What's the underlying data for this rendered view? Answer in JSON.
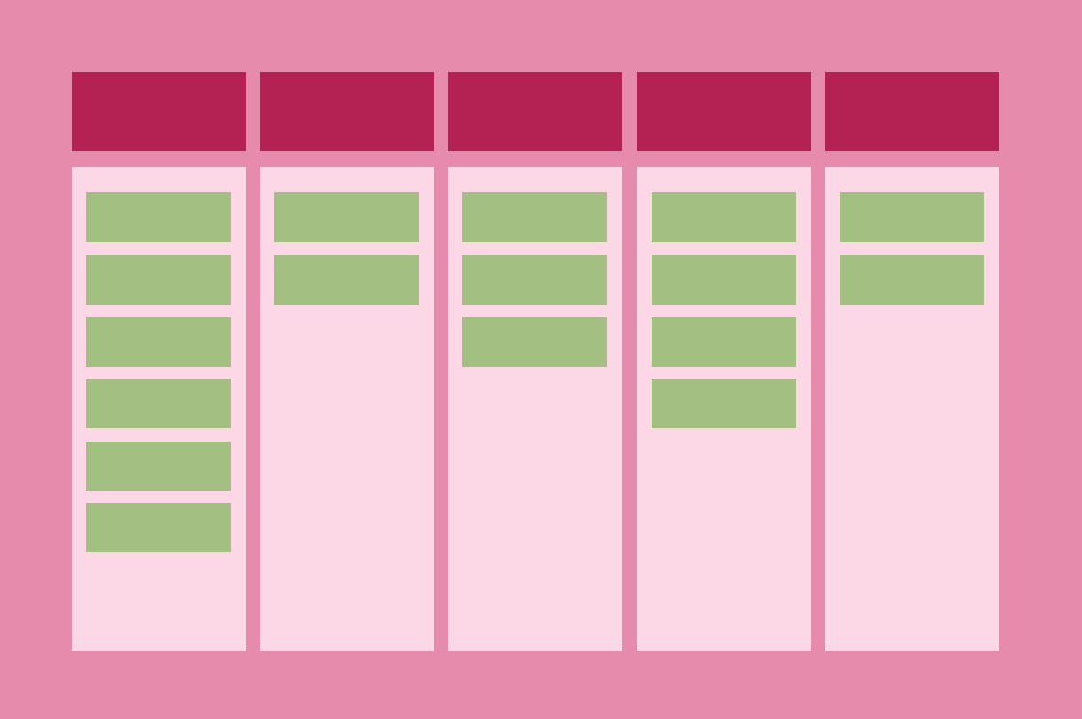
{
  "colors": {
    "background": "#e78bac",
    "column_header": "#b32252",
    "column_body": "#fcd7e6",
    "card": "#a3bf81"
  },
  "columns": [
    {
      "card_count": 6
    },
    {
      "card_count": 2
    },
    {
      "card_count": 3
    },
    {
      "card_count": 4
    },
    {
      "card_count": 2
    }
  ]
}
